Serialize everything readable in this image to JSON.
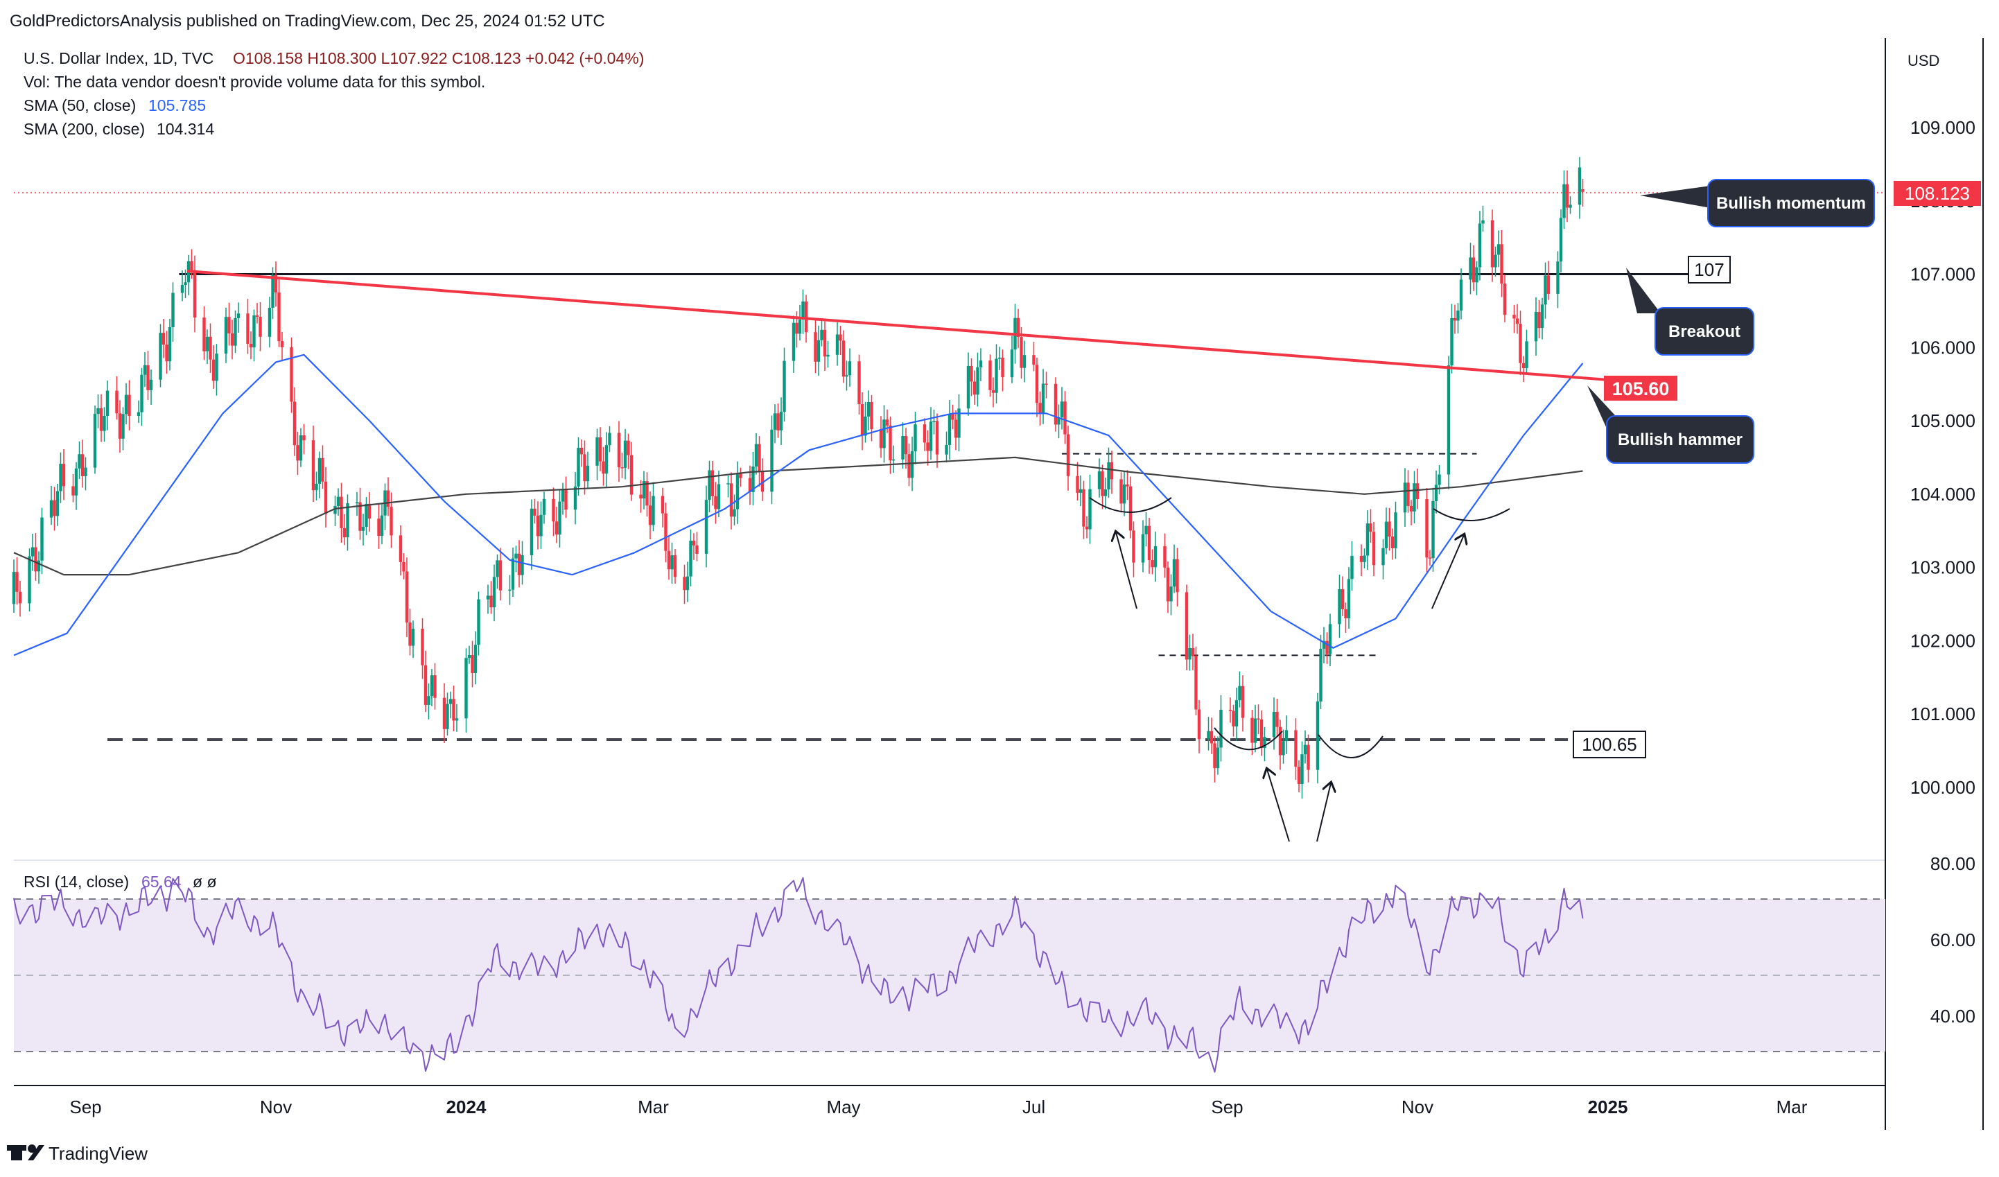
{
  "header": {
    "published_line": "GoldPredictorsAnalysis published on TradingView.com, Dec 25, 2024 01:52 UTC"
  },
  "legend": {
    "symbol": "U.S. Dollar Index, 1D, TVC",
    "ohlc": "O108.158  H108.300  L107.922  C108.123  +0.042 (+0.04%)",
    "vol_note": "Vol: The data vendor doesn't provide volume data for this symbol.",
    "sma50_label": "SMA (50, close)",
    "sma50_value": "105.785",
    "sma200_label": "SMA (200, close)",
    "sma200_value": "104.314",
    "rsi_label": "RSI (14, close)",
    "rsi_value": "65.64",
    "rsi_extra": "ø  ø"
  },
  "price_axis": {
    "currency": "USD",
    "ticks": [
      "109.000",
      "108.000",
      "107.000",
      "106.000",
      "105.000",
      "104.000",
      "103.000",
      "102.000",
      "101.000",
      "100.000"
    ]
  },
  "rsi_axis": {
    "ticks": [
      "80.00",
      "60.00",
      "40.00"
    ]
  },
  "time_axis": {
    "labels": [
      "Sep",
      "Nov",
      "2024",
      "Mar",
      "May",
      "Jul",
      "Sep",
      "Nov",
      "2025",
      "Mar"
    ]
  },
  "annotations": {
    "current_price": "108.123",
    "bullish_momentum": "Bullish momentum",
    "breakout": "Breakout",
    "bullish_hammer": "Bullish hammer",
    "level_107": "107",
    "level_10560": "105.60",
    "level_10065": "100.65"
  },
  "footer": {
    "brand": "TradingView"
  },
  "colors": {
    "bull": "#089981",
    "bear": "#f23645",
    "sma50": "#2962ff",
    "sma200": "#424242",
    "trendline": "#f23645",
    "rsi": "#7e57c2",
    "rsi_band": "#ede7f6"
  },
  "chart_data": {
    "type": "candlestick",
    "title": "U.S. Dollar Index, 1D, TVC",
    "x_range": [
      "2023-08-09",
      "2025-03-31"
    ],
    "ylim": [
      99.0,
      110.3
    ],
    "close_path": [
      [
        "2023-08-09",
        102.5
      ],
      [
        "2023-08-16",
        103.3
      ],
      [
        "2023-08-25",
        104.1
      ],
      [
        "2023-09-08",
        105.1
      ],
      [
        "2023-09-19",
        105.3
      ],
      [
        "2023-09-25",
        106.0
      ],
      [
        "2023-10-03",
        107.0
      ],
      [
        "2023-10-11",
        105.9
      ],
      [
        "2023-10-20",
        106.2
      ],
      [
        "2023-11-01",
        106.6
      ],
      [
        "2023-11-05",
        105.2
      ],
      [
        "2023-11-14",
        104.1
      ],
      [
        "2023-11-30",
        103.5
      ],
      [
        "2023-12-07",
        104.0
      ],
      [
        "2023-12-14",
        102.0
      ],
      [
        "2023-12-27",
        100.8
      ],
      [
        "2024-01-05",
        102.3
      ],
      [
        "2024-01-19",
        103.3
      ],
      [
        "2024-02-02",
        104.0
      ],
      [
        "2024-02-14",
        104.7
      ],
      [
        "2024-03-01",
        103.9
      ],
      [
        "2024-03-08",
        102.7
      ],
      [
        "2024-03-19",
        103.9
      ],
      [
        "2024-04-05",
        104.3
      ],
      [
        "2024-04-16",
        106.3
      ],
      [
        "2024-04-26",
        106.1
      ],
      [
        "2024-05-15",
        104.6
      ],
      [
        "2024-05-30",
        104.7
      ],
      [
        "2024-06-14",
        105.6
      ],
      [
        "2024-06-26",
        106.0
      ],
      [
        "2024-07-09",
        105.0
      ],
      [
        "2024-07-17",
        103.8
      ],
      [
        "2024-07-30",
        104.3
      ],
      [
        "2024-08-02",
        103.3
      ],
      [
        "2024-08-15",
        102.9
      ],
      [
        "2024-08-23",
        100.9
      ],
      [
        "2024-08-27",
        100.6
      ],
      [
        "2024-09-06",
        101.1
      ],
      [
        "2024-09-17",
        100.6
      ],
      [
        "2024-09-27",
        100.4
      ],
      [
        "2024-10-04",
        102.3
      ],
      [
        "2024-10-15",
        103.2
      ],
      [
        "2024-10-31",
        103.9
      ],
      [
        "2024-11-05",
        103.4
      ],
      [
        "2024-11-14",
        106.7
      ],
      [
        "2024-11-22",
        107.6
      ],
      [
        "2024-12-02",
        106.4
      ],
      [
        "2024-12-06",
        105.8
      ],
      [
        "2024-12-13",
        106.8
      ],
      [
        "2024-12-18",
        108.1
      ],
      [
        "2024-12-24",
        108.12
      ]
    ],
    "sma50": [
      [
        "2023-08-09",
        101.8
      ],
      [
        "2023-08-26",
        102.1
      ],
      [
        "2023-09-25",
        103.9
      ],
      [
        "2023-10-15",
        105.1
      ],
      [
        "2023-11-01",
        105.8
      ],
      [
        "2023-11-10",
        105.9
      ],
      [
        "2023-12-01",
        105.0
      ],
      [
        "2023-12-25",
        103.9
      ],
      [
        "2024-01-15",
        103.1
      ],
      [
        "2024-02-04",
        102.9
      ],
      [
        "2024-02-24",
        103.2
      ],
      [
        "2024-03-24",
        103.8
      ],
      [
        "2024-04-20",
        104.6
      ],
      [
        "2024-05-15",
        104.9
      ],
      [
        "2024-06-05",
        105.1
      ],
      [
        "2024-07-05",
        105.1
      ],
      [
        "2024-07-25",
        104.8
      ],
      [
        "2024-08-20",
        103.6
      ],
      [
        "2024-09-15",
        102.4
      ],
      [
        "2024-10-05",
        101.9
      ],
      [
        "2024-10-25",
        102.3
      ],
      [
        "2024-11-15",
        103.6
      ],
      [
        "2024-12-05",
        104.8
      ],
      [
        "2024-12-24",
        105.785
      ]
    ],
    "sma200": [
      [
        "2023-08-09",
        103.2
      ],
      [
        "2023-08-25",
        102.9
      ],
      [
        "2023-09-15",
        102.9
      ],
      [
        "2023-10-20",
        103.2
      ],
      [
        "2023-11-20",
        103.8
      ],
      [
        "2024-01-01",
        104.0
      ],
      [
        "2024-02-20",
        104.1
      ],
      [
        "2024-04-01",
        104.3
      ],
      [
        "2024-05-15",
        104.4
      ],
      [
        "2024-06-25",
        104.5
      ],
      [
        "2024-08-01",
        104.3
      ],
      [
        "2024-09-15",
        104.1
      ],
      [
        "2024-10-15",
        104.0
      ],
      [
        "2024-11-15",
        104.1
      ],
      [
        "2024-12-24",
        104.314
      ]
    ],
    "rsi": [
      [
        "2023-08-09",
        66
      ],
      [
        "2023-08-20",
        70
      ],
      [
        "2023-09-05",
        65
      ],
      [
        "2023-09-20",
        70
      ],
      [
        "2023-10-01",
        74
      ],
      [
        "2023-10-10",
        62
      ],
      [
        "2023-10-20",
        68
      ],
      [
        "2023-11-01",
        62
      ],
      [
        "2023-11-10",
        44
      ],
      [
        "2023-11-25",
        35
      ],
      [
        "2023-12-05",
        40
      ],
      [
        "2023-12-15",
        30
      ],
      [
        "2023-12-28",
        31
      ],
      [
        "2024-01-10",
        55
      ],
      [
        "2024-01-25",
        52
      ],
      [
        "2024-02-14",
        63
      ],
      [
        "2024-03-01",
        51
      ],
      [
        "2024-03-08",
        35
      ],
      [
        "2024-03-25",
        54
      ],
      [
        "2024-04-16",
        74
      ],
      [
        "2024-05-01",
        60
      ],
      [
        "2024-05-15",
        45
      ],
      [
        "2024-06-01",
        48
      ],
      [
        "2024-06-14",
        60
      ],
      [
        "2024-06-26",
        67
      ],
      [
        "2024-07-10",
        47
      ],
      [
        "2024-07-25",
        38
      ],
      [
        "2024-08-05",
        41
      ],
      [
        "2024-08-15",
        35
      ],
      [
        "2024-08-25",
        31
      ],
      [
        "2024-08-27",
        28
      ],
      [
        "2024-09-05",
        44
      ],
      [
        "2024-09-15",
        39
      ],
      [
        "2024-09-27",
        37
      ],
      [
        "2024-10-10",
        62
      ],
      [
        "2024-10-25",
        73
      ],
      [
        "2024-11-05",
        54
      ],
      [
        "2024-11-14",
        70
      ],
      [
        "2024-11-25",
        70
      ],
      [
        "2024-12-05",
        53
      ],
      [
        "2024-12-13",
        60
      ],
      [
        "2024-12-18",
        72
      ],
      [
        "2024-12-24",
        65.64
      ]
    ],
    "levels": [
      {
        "label": "107",
        "value": 107.0
      },
      {
        "label": "105.60",
        "value": 105.6
      },
      {
        "label": "100.65",
        "value": 100.65
      }
    ],
    "last": {
      "open": 108.158,
      "high": 108.3,
      "low": 107.922,
      "close": 108.123,
      "change": 0.042,
      "change_pct": 0.04
    }
  }
}
